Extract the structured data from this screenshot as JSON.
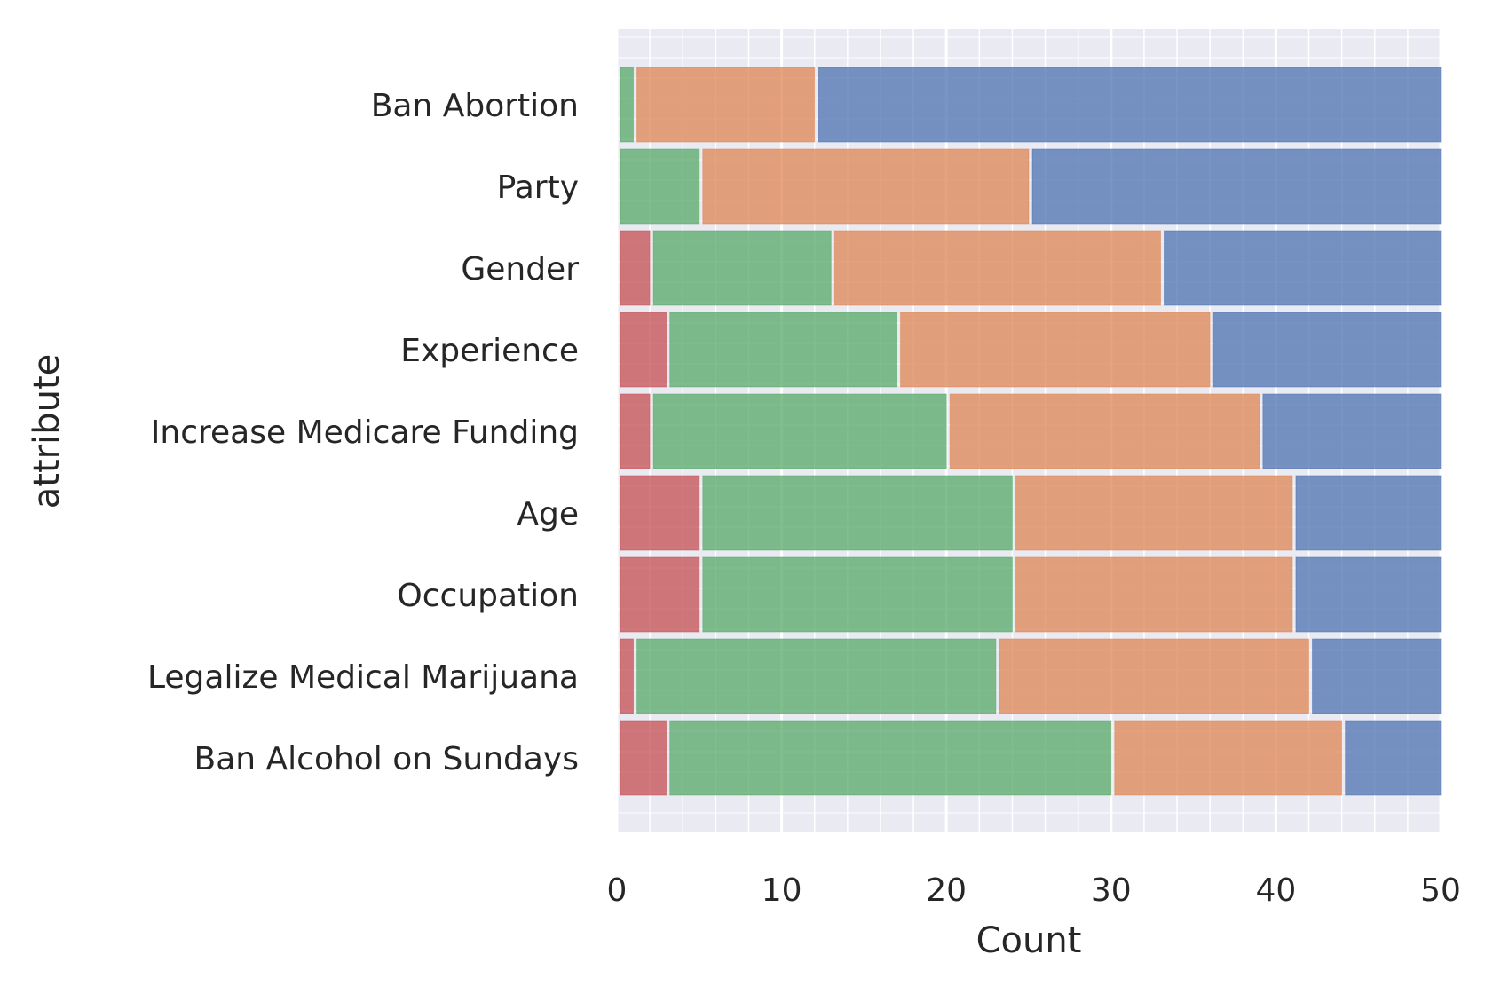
{
  "chart_data": {
    "type": "bar",
    "orientation": "horizontal",
    "stacked": true,
    "xlabel": "Count",
    "ylabel": "attribute",
    "xlim": [
      0,
      50
    ],
    "xticks": [
      "0",
      "10",
      "20",
      "30",
      "40",
      "50"
    ],
    "grid": true,
    "categories": [
      "Ban Abortion",
      "Party",
      "Gender",
      "Experience",
      "Increase Medicare Funding",
      "Age",
      "Occupation",
      "Legalize Medical Marijuana",
      "Ban Alcohol on Sundays"
    ],
    "series": [
      {
        "color": "#c44e52",
        "values": [
          0,
          0,
          2,
          3,
          2,
          5,
          5,
          1,
          3
        ]
      },
      {
        "color": "#55a868",
        "values": [
          1,
          5,
          11,
          14,
          18,
          19,
          19,
          22,
          27
        ]
      },
      {
        "color": "#dd8452",
        "values": [
          11,
          20,
          20,
          19,
          19,
          17,
          17,
          19,
          14
        ]
      },
      {
        "color": "#4c72b0",
        "values": [
          38,
          25,
          17,
          14,
          11,
          9,
          9,
          8,
          6
        ]
      }
    ]
  }
}
